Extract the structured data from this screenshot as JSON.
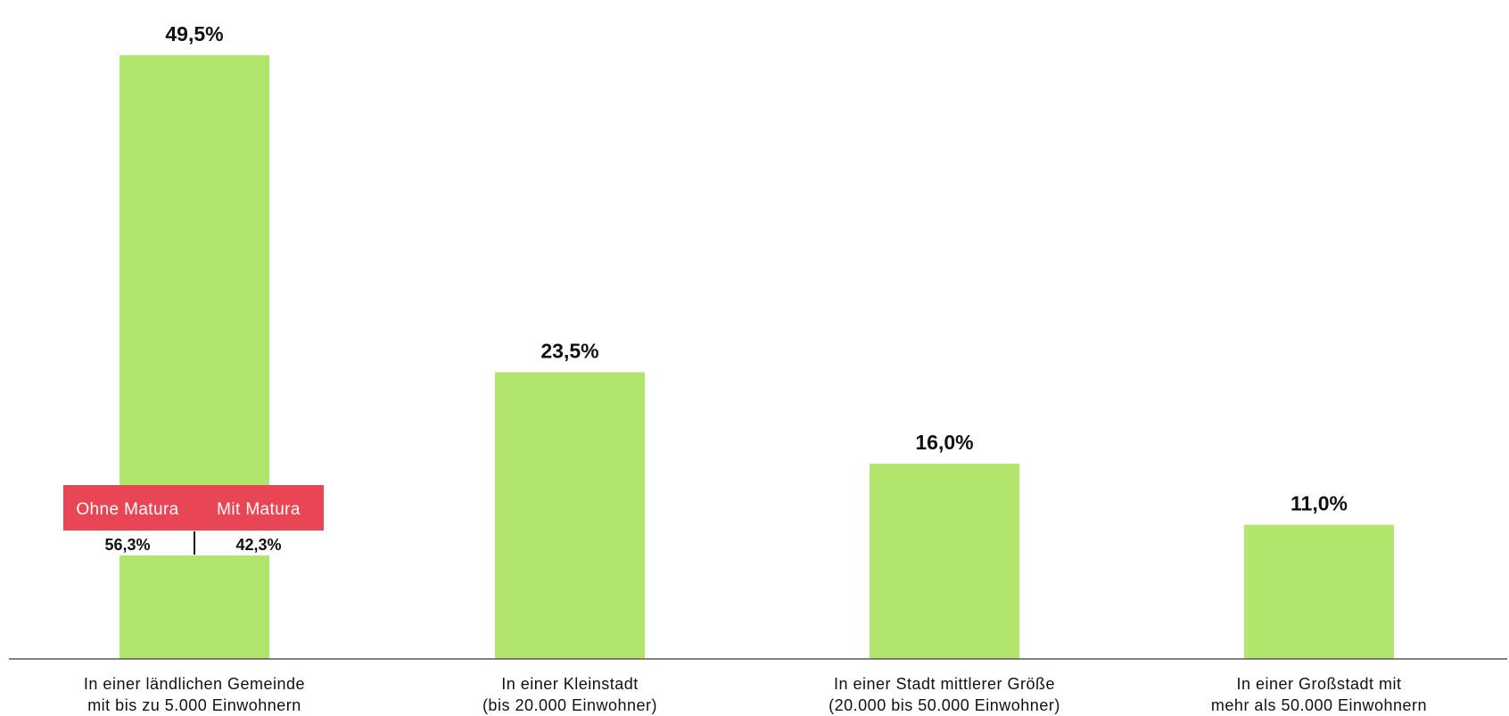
{
  "chart_data": {
    "type": "bar",
    "categories": [
      [
        "In einer ländlichen Gemeinde",
        "mit bis zu 5.000 Einwohnern"
      ],
      [
        "In einer Kleinstadt",
        "(bis 20.000 Einwohner)"
      ],
      [
        "In einer Stadt mittlerer Größe",
        "(20.000 bis 50.000 Einwohner)"
      ],
      [
        "In einer Großstadt mit",
        "mehr als 50.000 Einwohnern"
      ]
    ],
    "values": [
      49.5,
      23.5,
      16.0,
      11.0
    ],
    "value_labels": [
      "49,5%",
      "23,5%",
      "16,0%",
      "11,0%"
    ],
    "ylim": [
      0,
      50
    ],
    "grid": false,
    "legend": "none",
    "colors": {
      "bar": "#b1e56b",
      "axis": "#595959",
      "inset_header": "#e84555",
      "inset_text": "#ffffff"
    },
    "annotation": {
      "category_index": 0,
      "headers": [
        "Ohne Matura",
        "Mit Matura"
      ],
      "values": [
        56.3,
        42.3
      ],
      "value_labels": [
        "56,3%",
        "42,3%"
      ]
    }
  }
}
